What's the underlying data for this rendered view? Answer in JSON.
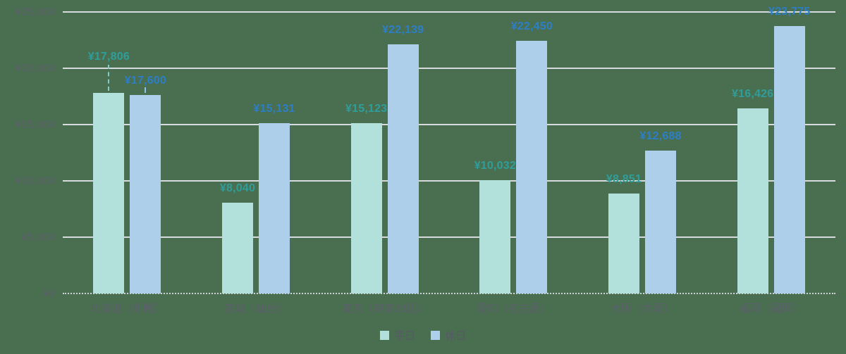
{
  "chart_data": {
    "type": "bar",
    "title": "",
    "xlabel": "",
    "ylabel": "",
    "unit": "JPY",
    "categories": [
      "北海道（札幌）",
      "宮城（仙台）",
      "東京（東京23区）",
      "愛知（名古屋）",
      "大阪（大阪）",
      "福岡（福岡）"
    ],
    "series": [
      {
        "name": "平日",
        "color": "#b2e1dc",
        "label_color": "#2f9e9b",
        "values": [
          17806,
          8040,
          15123,
          10032,
          8851,
          16426
        ],
        "labels": [
          "¥17,806",
          "¥8,040",
          "¥15,123",
          "¥10,032",
          "¥8,851",
          "¥16,426"
        ]
      },
      {
        "name": "休日",
        "color": "#aecfea",
        "label_color": "#2c7fc6",
        "values": [
          17600,
          15131,
          22139,
          22450,
          12688,
          23775
        ],
        "labels": [
          "¥17,600",
          "¥15,131",
          "¥22,139",
          "¥22,450",
          "¥12,688",
          "¥23,775"
        ]
      }
    ],
    "y_ticks": [
      {
        "value": 25000,
        "label": "¥25,000"
      },
      {
        "value": 20000,
        "label": "¥20,000"
      },
      {
        "value": 15000,
        "label": "¥15,000"
      },
      {
        "value": 10000,
        "label": "¥10,000"
      },
      {
        "value": 5000,
        "label": "¥5,000"
      },
      {
        "value": 0,
        "label": "¥0"
      }
    ],
    "ylim": [
      0,
      25000
    ],
    "grid": true,
    "legend_position": "bottom"
  },
  "colors": {
    "background": "#4a6e50",
    "gridline": "#d7dbde",
    "baseline": "#ccd2d5",
    "axis_text": "#5b5f6b",
    "legend_text": "#565b66",
    "leader_weekday": "#83cbc6",
    "leader_holiday": "#8fc0e8"
  }
}
